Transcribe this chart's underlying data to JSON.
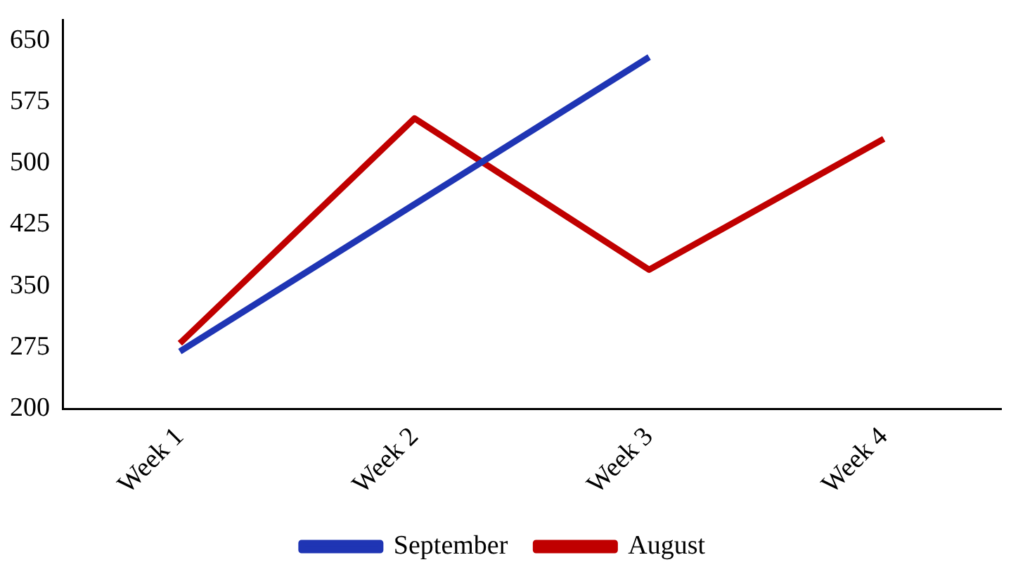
{
  "chart_data": {
    "type": "line",
    "categories": [
      "Week 1",
      "Week 2",
      "Week 3",
      "Week 4"
    ],
    "series": [
      {
        "name": "September",
        "color": "#1f35b4",
        "values": [
          270,
          450,
          630,
          null
        ]
      },
      {
        "name": "August",
        "color": "#c00000",
        "values": [
          280,
          555,
          370,
          530
        ]
      }
    ],
    "ylim": [
      200,
      675
    ],
    "yticks": [
      200,
      275,
      350,
      425,
      500,
      575,
      650
    ],
    "grid": false,
    "legend": "bottom",
    "marker": "none",
    "line_style": "solid"
  }
}
